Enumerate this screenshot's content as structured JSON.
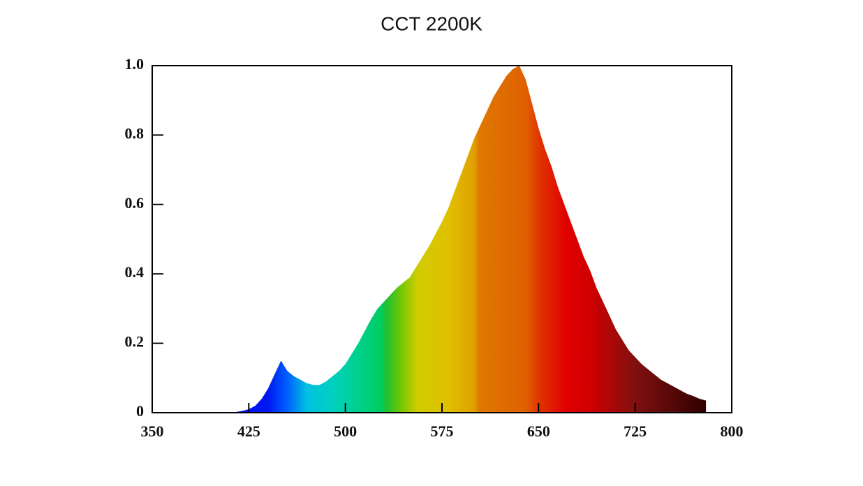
{
  "chart_data": {
    "type": "area",
    "title": "CCT 2200K",
    "x": [
      380,
      385,
      390,
      395,
      400,
      405,
      410,
      415,
      420,
      425,
      430,
      435,
      440,
      445,
      450,
      455,
      460,
      465,
      470,
      475,
      480,
      485,
      490,
      495,
      500,
      505,
      510,
      515,
      520,
      525,
      530,
      535,
      540,
      545,
      550,
      555,
      560,
      565,
      570,
      575,
      580,
      585,
      590,
      595,
      600,
      605,
      610,
      615,
      620,
      625,
      630,
      635,
      640,
      645,
      650,
      655,
      660,
      665,
      670,
      675,
      680,
      685,
      690,
      695,
      700,
      705,
      710,
      715,
      720,
      725,
      730,
      735,
      740,
      745,
      750,
      755,
      760,
      765,
      770,
      775,
      780
    ],
    "values": [
      0,
      0,
      0,
      0,
      0,
      0,
      0,
      0.002,
      0.005,
      0.01,
      0.02,
      0.04,
      0.07,
      0.11,
      0.15,
      0.12,
      0.105,
      0.095,
      0.085,
      0.08,
      0.08,
      0.09,
      0.105,
      0.12,
      0.14,
      0.17,
      0.2,
      0.235,
      0.27,
      0.3,
      0.32,
      0.34,
      0.36,
      0.375,
      0.39,
      0.42,
      0.45,
      0.48,
      0.515,
      0.55,
      0.59,
      0.64,
      0.69,
      0.74,
      0.79,
      0.83,
      0.87,
      0.91,
      0.94,
      0.97,
      0.99,
      1.0,
      0.96,
      0.89,
      0.82,
      0.76,
      0.71,
      0.65,
      0.6,
      0.55,
      0.5,
      0.45,
      0.41,
      0.36,
      0.32,
      0.28,
      0.24,
      0.21,
      0.18,
      0.16,
      0.14,
      0.125,
      0.11,
      0.095,
      0.085,
      0.075,
      0.065,
      0.055,
      0.048,
      0.04,
      0.035
    ],
    "color_stops": [
      {
        "x": 380,
        "color": "#0000ff"
      },
      {
        "x": 440,
        "color": "#0018f0"
      },
      {
        "x": 455,
        "color": "#0060ff"
      },
      {
        "x": 470,
        "color": "#00c0e0"
      },
      {
        "x": 490,
        "color": "#00d0c0"
      },
      {
        "x": 515,
        "color": "#00d080"
      },
      {
        "x": 528,
        "color": "#00cc60"
      },
      {
        "x": 532,
        "color": "#20c030"
      },
      {
        "x": 545,
        "color": "#80c800"
      },
      {
        "x": 556,
        "color": "#d0cc00"
      },
      {
        "x": 580,
        "color": "#e0c000"
      },
      {
        "x": 600,
        "color": "#e0a000"
      },
      {
        "x": 604,
        "color": "#e07800"
      },
      {
        "x": 640,
        "color": "#e06000"
      },
      {
        "x": 652,
        "color": "#e03000"
      },
      {
        "x": 672,
        "color": "#e00000"
      },
      {
        "x": 690,
        "color": "#d00000"
      },
      {
        "x": 725,
        "color": "#801010"
      },
      {
        "x": 780,
        "color": "#300000"
      }
    ],
    "xlim": [
      350,
      800
    ],
    "xticks": [
      350,
      425,
      500,
      575,
      650,
      725,
      800
    ],
    "ylim": [
      0,
      1
    ],
    "yticks": [
      0,
      0.2,
      0.4,
      0.6,
      0.8,
      {
        "value": 1,
        "label": "1.0"
      }
    ]
  }
}
